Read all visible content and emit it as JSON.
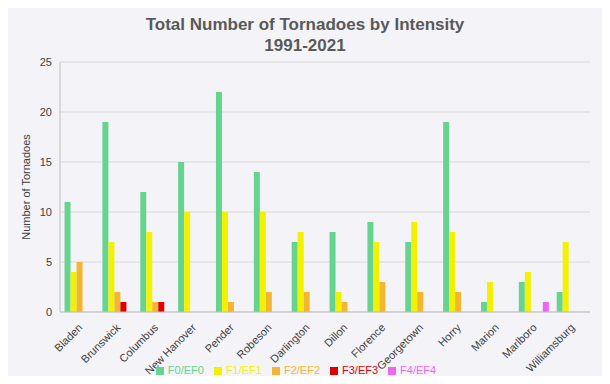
{
  "chart_data": {
    "type": "bar",
    "title": "Total Number of Tornadoes by Intensity",
    "subtitle": "1991-2021",
    "y_label": "Number of Tornadoes",
    "categories": [
      "Bladen",
      "Brunswick",
      "Columbus",
      "New Hanover",
      "Pender",
      "Robeson",
      "Darlington",
      "Dillon",
      "Florence",
      "Georgetown",
      "Horry",
      "Marion",
      "Marlboro",
      "Williamsburg"
    ],
    "series": [
      {
        "name": "F0/EF0",
        "color": "#66d48f",
        "values": [
          11,
          19,
          12,
          15,
          22,
          14,
          7,
          8,
          9,
          7,
          19,
          1,
          3,
          2
        ]
      },
      {
        "name": "F1/EF1",
        "color": "#f2f200",
        "values": [
          4,
          7,
          8,
          10,
          10,
          10,
          8,
          2,
          7,
          9,
          8,
          3,
          4,
          7
        ]
      },
      {
        "name": "F2/EF2",
        "color": "#f2b634",
        "values": [
          5,
          2,
          1,
          0,
          1,
          2,
          2,
          1,
          3,
          2,
          2,
          0,
          0,
          0
        ]
      },
      {
        "name": "F3/EF3",
        "color": "#e00000",
        "values": [
          0,
          1,
          1,
          0,
          0,
          0,
          0,
          0,
          0,
          0,
          0,
          0,
          0,
          0
        ]
      },
      {
        "name": "F4/EF4",
        "color": "#ee66ee",
        "values": [
          0,
          0,
          0,
          0,
          0,
          0,
          0,
          0,
          0,
          0,
          0,
          0,
          1,
          0
        ]
      }
    ],
    "ylim": [
      0,
      25
    ],
    "yticks": [
      0,
      5,
      10,
      15,
      20,
      25
    ],
    "grid": true,
    "legend": "bottom"
  }
}
